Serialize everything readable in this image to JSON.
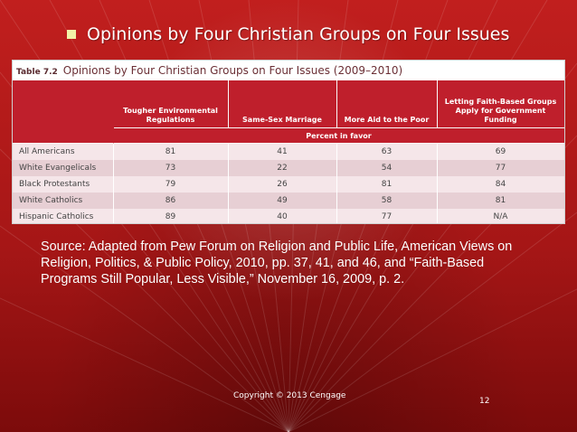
{
  "slide": {
    "title": "Opinions by Four Christian Groups on Four Issues",
    "colors": {
      "background_top": "#c11f1e",
      "background_bottom": "#7c0b0b",
      "table_header": "#bf1f2c",
      "table_title": "#6b2f35",
      "row_light": "#f5e6e9",
      "row_dark": "#e7cfd4",
      "bullet": "#f2f2a8"
    }
  },
  "table": {
    "label": "Table 7.2",
    "title": "Opinions by Four Christian Groups on Four Issues (2009–2010)",
    "row_header": "",
    "columns": [
      "Tougher Environmental Regulations",
      "Same-Sex Marriage",
      "More Aid to the Poor",
      "Letting Faith-Based Groups Apply for Government Funding"
    ],
    "subheader": "Percent in favor",
    "rows": [
      {
        "label": "All Americans",
        "values": [
          "81",
          "41",
          "63",
          "69"
        ]
      },
      {
        "label": "White Evangelicals",
        "values": [
          "73",
          "22",
          "54",
          "77"
        ]
      },
      {
        "label": "Black Protestants",
        "values": [
          "79",
          "26",
          "81",
          "84"
        ]
      },
      {
        "label": "White Catholics",
        "values": [
          "86",
          "49",
          "58",
          "81"
        ]
      },
      {
        "label": "Hispanic Catholics",
        "values": [
          "89",
          "40",
          "77",
          "N/A"
        ]
      }
    ]
  },
  "source": {
    "text": "Source: Adapted from Pew Forum on Religion and Public Life, American Views on Religion, Politics, & Public Policy, 2010, pp. 37, 41, and 46, and “Faith-Based Programs Still Popular, Less Visible,” November 16, 2009, p. 2."
  },
  "footer": {
    "copyright": "Copyright © 2013 Cengage",
    "page_number": "12"
  }
}
